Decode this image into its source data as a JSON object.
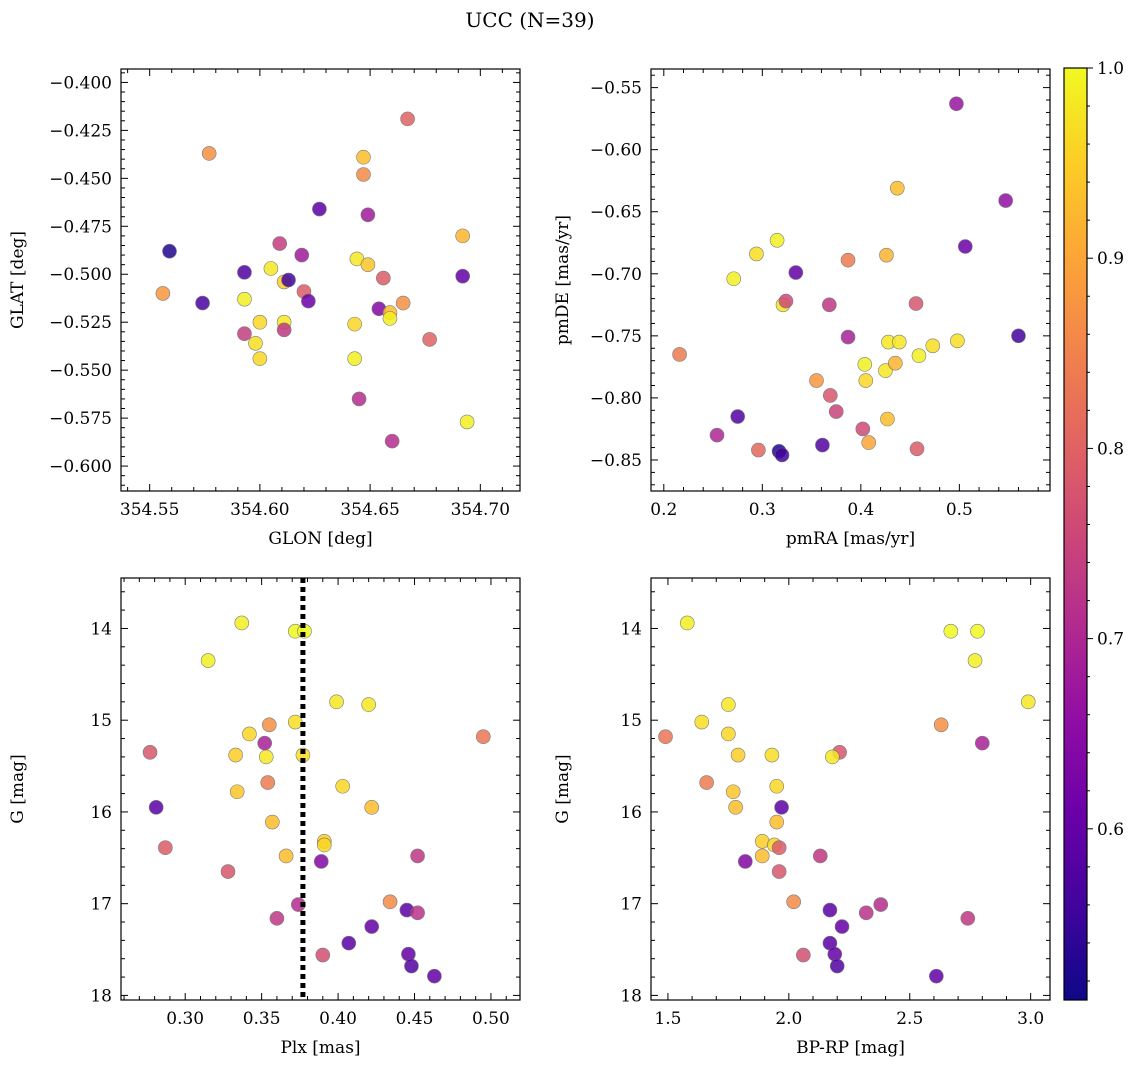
{
  "title": "UCC (N=39)",
  "colorbar": {
    "colormap": "plasma",
    "range": [
      0.51,
      1.0
    ],
    "ticks": [
      0.6,
      0.7,
      0.8,
      0.9,
      1.0
    ],
    "tick_labels": [
      "0.6",
      "0.7",
      "0.8",
      "0.9",
      "1.0"
    ]
  },
  "chart_data": [
    {
      "type": "scatter",
      "xlabel": "GLON [deg]",
      "ylabel": "GLAT [deg]",
      "xlim": [
        354.537,
        354.718
      ],
      "ylim": [
        -0.613,
        -0.393
      ],
      "xticks": [
        354.55,
        354.6,
        354.65,
        354.7
      ],
      "xtick_labels": [
        "354.55",
        "354.60",
        "354.65",
        "354.70"
      ],
      "yticks": [
        -0.6,
        -0.575,
        -0.55,
        -0.525,
        -0.5,
        -0.475,
        -0.45,
        -0.425,
        -0.4
      ],
      "ytick_labels": [
        "−0.600",
        "−0.575",
        "−0.550",
        "−0.525",
        "−0.500",
        "−0.475",
        "−0.450",
        "−0.425",
        "−0.400"
      ],
      "points": [
        {
          "x": 354.559,
          "y": -0.488,
          "c": 0.53
        },
        {
          "x": 354.556,
          "y": -0.51,
          "c": 0.88
        },
        {
          "x": 354.577,
          "y": -0.437,
          "c": 0.87
        },
        {
          "x": 354.574,
          "y": -0.515,
          "c": 0.57
        },
        {
          "x": 354.593,
          "y": -0.499,
          "c": 0.58
        },
        {
          "x": 354.593,
          "y": -0.513,
          "c": 0.99
        },
        {
          "x": 354.593,
          "y": -0.531,
          "c": 0.74
        },
        {
          "x": 354.598,
          "y": -0.536,
          "c": 0.97
        },
        {
          "x": 354.6,
          "y": -0.525,
          "c": 0.96
        },
        {
          "x": 354.6,
          "y": -0.544,
          "c": 0.96
        },
        {
          "x": 354.605,
          "y": -0.497,
          "c": 0.98
        },
        {
          "x": 354.609,
          "y": -0.484,
          "c": 0.74
        },
        {
          "x": 354.611,
          "y": -0.525,
          "c": 0.98
        },
        {
          "x": 354.611,
          "y": -0.529,
          "c": 0.73
        },
        {
          "x": 354.611,
          "y": -0.504,
          "c": 0.95
        },
        {
          "x": 354.613,
          "y": -0.503,
          "c": 0.56
        },
        {
          "x": 354.619,
          "y": -0.49,
          "c": 0.68
        },
        {
          "x": 354.62,
          "y": -0.509,
          "c": 0.79
        },
        {
          "x": 354.622,
          "y": -0.514,
          "c": 0.61
        },
        {
          "x": 354.627,
          "y": -0.466,
          "c": 0.59
        },
        {
          "x": 354.643,
          "y": -0.544,
          "c": 0.99
        },
        {
          "x": 354.643,
          "y": -0.526,
          "c": 0.96
        },
        {
          "x": 354.644,
          "y": -0.492,
          "c": 0.98
        },
        {
          "x": 354.645,
          "y": -0.565,
          "c": 0.71
        },
        {
          "x": 354.647,
          "y": -0.439,
          "c": 0.93
        },
        {
          "x": 354.647,
          "y": -0.448,
          "c": 0.86
        },
        {
          "x": 354.649,
          "y": -0.469,
          "c": 0.68
        },
        {
          "x": 354.649,
          "y": -0.495,
          "c": 0.94
        },
        {
          "x": 354.654,
          "y": -0.518,
          "c": 0.64
        },
        {
          "x": 354.656,
          "y": -0.502,
          "c": 0.79
        },
        {
          "x": 354.659,
          "y": -0.52,
          "c": 0.93
        },
        {
          "x": 354.659,
          "y": -0.523,
          "c": 0.99
        },
        {
          "x": 354.66,
          "y": -0.587,
          "c": 0.71
        },
        {
          "x": 354.665,
          "y": -0.515,
          "c": 0.87
        },
        {
          "x": 354.667,
          "y": -0.419,
          "c": 0.8
        },
        {
          "x": 354.677,
          "y": -0.534,
          "c": 0.8
        },
        {
          "x": 354.692,
          "y": -0.48,
          "c": 0.92
        },
        {
          "x": 354.692,
          "y": -0.501,
          "c": 0.6
        },
        {
          "x": 354.694,
          "y": -0.577,
          "c": 0.99
        }
      ]
    },
    {
      "type": "scatter",
      "xlabel": "pmRA [mas/yr]",
      "ylabel": "pmDE [mas/yr]",
      "xlim": [
        0.187,
        0.592
      ],
      "ylim": [
        -0.875,
        -0.535
      ],
      "xticks": [
        0.2,
        0.3,
        0.4,
        0.5
      ],
      "xtick_labels": [
        "0.2",
        "0.3",
        "0.4",
        "0.5"
      ],
      "yticks": [
        -0.85,
        -0.8,
        -0.75,
        -0.7,
        -0.65,
        -0.6,
        -0.55
      ],
      "ytick_labels": [
        "−0.85",
        "−0.80",
        "−0.75",
        "−0.70",
        "−0.65",
        "−0.60",
        "−0.55"
      ],
      "points": [
        {
          "x": 0.216,
          "y": -0.765,
          "c": 0.84
        },
        {
          "x": 0.254,
          "y": -0.83,
          "c": 0.7
        },
        {
          "x": 0.271,
          "y": -0.704,
          "c": 0.99
        },
        {
          "x": 0.275,
          "y": -0.815,
          "c": 0.58
        },
        {
          "x": 0.294,
          "y": -0.684,
          "c": 0.97
        },
        {
          "x": 0.296,
          "y": -0.842,
          "c": 0.81
        },
        {
          "x": 0.315,
          "y": -0.673,
          "c": 0.99
        },
        {
          "x": 0.317,
          "y": -0.843,
          "c": 0.53
        },
        {
          "x": 0.32,
          "y": -0.846,
          "c": 0.56
        },
        {
          "x": 0.321,
          "y": -0.725,
          "c": 0.98
        },
        {
          "x": 0.324,
          "y": -0.722,
          "c": 0.76
        },
        {
          "x": 0.334,
          "y": -0.699,
          "c": 0.6
        },
        {
          "x": 0.355,
          "y": -0.786,
          "c": 0.88
        },
        {
          "x": 0.361,
          "y": -0.838,
          "c": 0.58
        },
        {
          "x": 0.368,
          "y": -0.725,
          "c": 0.73
        },
        {
          "x": 0.369,
          "y": -0.798,
          "c": 0.78
        },
        {
          "x": 0.375,
          "y": -0.811,
          "c": 0.75
        },
        {
          "x": 0.387,
          "y": -0.689,
          "c": 0.84
        },
        {
          "x": 0.387,
          "y": -0.751,
          "c": 0.69
        },
        {
          "x": 0.402,
          "y": -0.825,
          "c": 0.76
        },
        {
          "x": 0.404,
          "y": -0.773,
          "c": 0.99
        },
        {
          "x": 0.405,
          "y": -0.786,
          "c": 0.96
        },
        {
          "x": 0.408,
          "y": -0.836,
          "c": 0.9
        },
        {
          "x": 0.425,
          "y": -0.778,
          "c": 0.98
        },
        {
          "x": 0.426,
          "y": -0.685,
          "c": 0.92
        },
        {
          "x": 0.427,
          "y": -0.817,
          "c": 0.93
        },
        {
          "x": 0.428,
          "y": -0.755,
          "c": 0.98
        },
        {
          "x": 0.435,
          "y": -0.772,
          "c": 0.92
        },
        {
          "x": 0.437,
          "y": -0.631,
          "c": 0.93
        },
        {
          "x": 0.439,
          "y": -0.755,
          "c": 0.98
        },
        {
          "x": 0.456,
          "y": -0.724,
          "c": 0.78
        },
        {
          "x": 0.457,
          "y": -0.841,
          "c": 0.79
        },
        {
          "x": 0.459,
          "y": -0.766,
          "c": 0.99
        },
        {
          "x": 0.473,
          "y": -0.758,
          "c": 0.97
        },
        {
          "x": 0.497,
          "y": -0.563,
          "c": 0.67
        },
        {
          "x": 0.498,
          "y": -0.754,
          "c": 0.97
        },
        {
          "x": 0.506,
          "y": -0.678,
          "c": 0.61
        },
        {
          "x": 0.547,
          "y": -0.641,
          "c": 0.66
        },
        {
          "x": 0.56,
          "y": -0.75,
          "c": 0.56
        }
      ]
    },
    {
      "type": "scatter",
      "xlabel": "Plx [mas]",
      "ylabel": "G [mag]",
      "xlim": [
        0.258,
        0.519
      ],
      "ylim": [
        18.05,
        13.45
      ],
      "yinverted": true,
      "xticks": [
        0.3,
        0.35,
        0.4,
        0.45,
        0.5
      ],
      "xtick_labels": [
        "0.30",
        "0.35",
        "0.40",
        "0.45",
        "0.50"
      ],
      "yticks": [
        14,
        15,
        16,
        17,
        18
      ],
      "ytick_labels": [
        "14",
        "15",
        "16",
        "17",
        "18"
      ],
      "vline": 0.377,
      "points": [
        {
          "x": 0.337,
          "y": 13.94,
          "c": 0.99
        },
        {
          "x": 0.372,
          "y": 14.03,
          "c": 1.0
        },
        {
          "x": 0.378,
          "y": 14.03,
          "c": 1.0
        },
        {
          "x": 0.315,
          "y": 14.35,
          "c": 0.99
        },
        {
          "x": 0.399,
          "y": 14.8,
          "c": 0.98
        },
        {
          "x": 0.42,
          "y": 14.83,
          "c": 0.98
        },
        {
          "x": 0.372,
          "y": 15.02,
          "c": 0.97
        },
        {
          "x": 0.355,
          "y": 15.05,
          "c": 0.87
        },
        {
          "x": 0.342,
          "y": 15.15,
          "c": 0.96
        },
        {
          "x": 0.495,
          "y": 15.18,
          "c": 0.83
        },
        {
          "x": 0.352,
          "y": 15.25,
          "c": 0.69
        },
        {
          "x": 0.277,
          "y": 15.35,
          "c": 0.78
        },
        {
          "x": 0.333,
          "y": 15.38,
          "c": 0.95
        },
        {
          "x": 0.377,
          "y": 15.38,
          "c": 0.97
        },
        {
          "x": 0.353,
          "y": 15.4,
          "c": 0.98
        },
        {
          "x": 0.354,
          "y": 15.68,
          "c": 0.84
        },
        {
          "x": 0.403,
          "y": 15.72,
          "c": 0.96
        },
        {
          "x": 0.334,
          "y": 15.78,
          "c": 0.94
        },
        {
          "x": 0.281,
          "y": 15.95,
          "c": 0.59
        },
        {
          "x": 0.422,
          "y": 15.95,
          "c": 0.93
        },
        {
          "x": 0.357,
          "y": 16.11,
          "c": 0.93
        },
        {
          "x": 0.391,
          "y": 16.32,
          "c": 0.95
        },
        {
          "x": 0.391,
          "y": 16.36,
          "c": 0.96
        },
        {
          "x": 0.287,
          "y": 16.39,
          "c": 0.79
        },
        {
          "x": 0.366,
          "y": 16.48,
          "c": 0.93
        },
        {
          "x": 0.452,
          "y": 16.48,
          "c": 0.73
        },
        {
          "x": 0.389,
          "y": 16.54,
          "c": 0.64
        },
        {
          "x": 0.328,
          "y": 16.65,
          "c": 0.78
        },
        {
          "x": 0.434,
          "y": 16.98,
          "c": 0.86
        },
        {
          "x": 0.374,
          "y": 17.01,
          "c": 0.71
        },
        {
          "x": 0.445,
          "y": 17.07,
          "c": 0.59
        },
        {
          "x": 0.452,
          "y": 17.1,
          "c": 0.72
        },
        {
          "x": 0.36,
          "y": 17.16,
          "c": 0.73
        },
        {
          "x": 0.422,
          "y": 17.25,
          "c": 0.6
        },
        {
          "x": 0.407,
          "y": 17.43,
          "c": 0.59
        },
        {
          "x": 0.39,
          "y": 17.56,
          "c": 0.77
        },
        {
          "x": 0.446,
          "y": 17.55,
          "c": 0.6
        },
        {
          "x": 0.448,
          "y": 17.68,
          "c": 0.58
        },
        {
          "x": 0.463,
          "y": 17.79,
          "c": 0.6
        }
      ]
    },
    {
      "type": "scatter",
      "xlabel": "BP-RP [mag]",
      "ylabel": "G [mag]",
      "xlim": [
        1.43,
        3.08
      ],
      "ylim": [
        18.05,
        13.45
      ],
      "yinverted": true,
      "xticks": [
        1.5,
        2.0,
        2.5,
        3.0
      ],
      "xtick_labels": [
        "1.5",
        "2.0",
        "2.5",
        "3.0"
      ],
      "yticks": [
        14,
        15,
        16,
        17,
        18
      ],
      "ytick_labels": [
        "14",
        "15",
        "16",
        "17",
        "18"
      ],
      "points": [
        {
          "x": 1.58,
          "y": 13.94,
          "c": 0.99
        },
        {
          "x": 2.67,
          "y": 14.03,
          "c": 1.0
        },
        {
          "x": 2.78,
          "y": 14.03,
          "c": 1.0
        },
        {
          "x": 2.77,
          "y": 14.35,
          "c": 0.99
        },
        {
          "x": 2.99,
          "y": 14.8,
          "c": 0.98
        },
        {
          "x": 1.75,
          "y": 14.83,
          "c": 0.98
        },
        {
          "x": 1.64,
          "y": 15.02,
          "c": 0.97
        },
        {
          "x": 2.63,
          "y": 15.05,
          "c": 0.87
        },
        {
          "x": 1.75,
          "y": 15.15,
          "c": 0.96
        },
        {
          "x": 1.49,
          "y": 15.18,
          "c": 0.83
        },
        {
          "x": 2.8,
          "y": 15.25,
          "c": 0.69
        },
        {
          "x": 2.21,
          "y": 15.35,
          "c": 0.78
        },
        {
          "x": 1.79,
          "y": 15.38,
          "c": 0.95
        },
        {
          "x": 1.93,
          "y": 15.38,
          "c": 0.97
        },
        {
          "x": 2.18,
          "y": 15.4,
          "c": 0.98
        },
        {
          "x": 1.66,
          "y": 15.68,
          "c": 0.84
        },
        {
          "x": 1.95,
          "y": 15.72,
          "c": 0.96
        },
        {
          "x": 1.77,
          "y": 15.78,
          "c": 0.94
        },
        {
          "x": 1.97,
          "y": 15.95,
          "c": 0.59
        },
        {
          "x": 1.78,
          "y": 15.95,
          "c": 0.93
        },
        {
          "x": 1.95,
          "y": 16.11,
          "c": 0.93
        },
        {
          "x": 1.89,
          "y": 16.32,
          "c": 0.95
        },
        {
          "x": 1.94,
          "y": 16.36,
          "c": 0.96
        },
        {
          "x": 1.96,
          "y": 16.39,
          "c": 0.79
        },
        {
          "x": 1.89,
          "y": 16.48,
          "c": 0.93
        },
        {
          "x": 2.13,
          "y": 16.48,
          "c": 0.73
        },
        {
          "x": 1.82,
          "y": 16.54,
          "c": 0.64
        },
        {
          "x": 1.96,
          "y": 16.65,
          "c": 0.78
        },
        {
          "x": 2.02,
          "y": 16.98,
          "c": 0.86
        },
        {
          "x": 2.38,
          "y": 17.01,
          "c": 0.71
        },
        {
          "x": 2.17,
          "y": 17.07,
          "c": 0.59
        },
        {
          "x": 2.32,
          "y": 17.1,
          "c": 0.72
        },
        {
          "x": 2.74,
          "y": 17.16,
          "c": 0.73
        },
        {
          "x": 2.22,
          "y": 17.25,
          "c": 0.6
        },
        {
          "x": 2.17,
          "y": 17.43,
          "c": 0.59
        },
        {
          "x": 2.06,
          "y": 17.56,
          "c": 0.77
        },
        {
          "x": 2.19,
          "y": 17.55,
          "c": 0.6
        },
        {
          "x": 2.2,
          "y": 17.68,
          "c": 0.58
        },
        {
          "x": 2.61,
          "y": 17.79,
          "c": 0.6
        }
      ]
    }
  ]
}
